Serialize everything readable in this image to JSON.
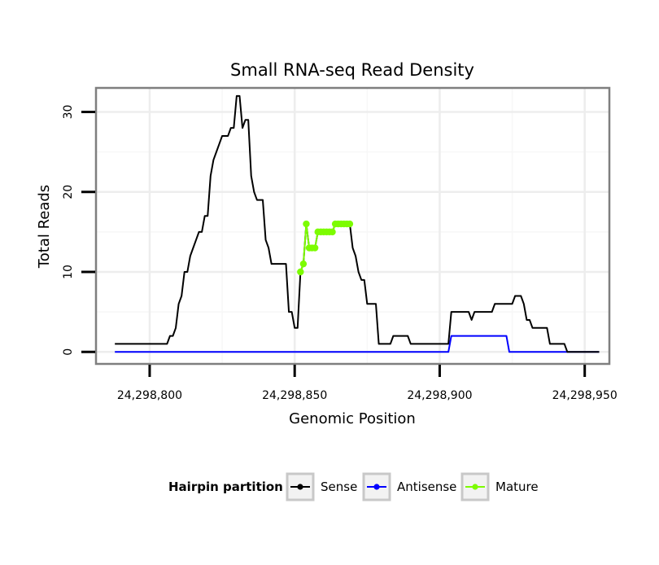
{
  "chart_data": {
    "type": "line",
    "title": "Small RNA-seq Read Density",
    "xlabel": "Genomic Position",
    "ylabel": "Total Reads",
    "xlim": [
      24298781.5,
      24298958.5
    ],
    "ylim": [
      -1.5,
      33
    ],
    "x_ticks": [
      24298800,
      24298850,
      24298900,
      24298950
    ],
    "x_tick_labels": [
      "24,298,800",
      "24,298,850",
      "24,298,900",
      "24,298,950"
    ],
    "y_ticks": [
      0,
      10,
      20,
      30
    ],
    "y_tick_labels": [
      "0",
      "10",
      "20",
      "30"
    ],
    "grid": true,
    "legend": {
      "title": "Hairpin partition",
      "position": "bottom",
      "entries": [
        "Sense",
        "Antisense",
        "Mature"
      ]
    },
    "colors": {
      "Sense": "#000000",
      "Antisense": "#0000ff",
      "Mature": "#7cfc00"
    },
    "series": [
      {
        "name": "Sense",
        "color": "#000000",
        "points": [
          [
            24298788,
            1
          ],
          [
            24298806,
            1
          ],
          [
            24298807,
            2
          ],
          [
            24298808,
            2
          ],
          [
            24298809,
            3
          ],
          [
            24298810,
            6
          ],
          [
            24298811,
            7
          ],
          [
            24298812,
            10
          ],
          [
            24298813,
            10
          ],
          [
            24298814,
            12
          ],
          [
            24298815,
            13
          ],
          [
            24298816,
            14
          ],
          [
            24298817,
            15
          ],
          [
            24298818,
            15
          ],
          [
            24298819,
            17
          ],
          [
            24298820,
            17
          ],
          [
            24298821,
            22
          ],
          [
            24298822,
            24
          ],
          [
            24298823,
            25
          ],
          [
            24298824,
            26
          ],
          [
            24298825,
            27
          ],
          [
            24298827,
            27
          ],
          [
            24298828,
            28
          ],
          [
            24298829,
            28
          ],
          [
            24298830,
            32
          ],
          [
            24298831,
            32
          ],
          [
            24298832,
            28
          ],
          [
            24298833,
            29
          ],
          [
            24298834,
            29
          ],
          [
            24298835,
            22
          ],
          [
            24298836,
            20
          ],
          [
            24298837,
            19
          ],
          [
            24298839,
            19
          ],
          [
            24298840,
            14
          ],
          [
            24298841,
            13
          ],
          [
            24298842,
            11
          ],
          [
            24298847,
            11
          ],
          [
            24298848,
            5
          ],
          [
            24298849,
            5
          ],
          [
            24298850,
            3
          ],
          [
            24298851,
            3
          ],
          [
            24298852,
            10
          ],
          [
            24298853,
            11
          ],
          [
            24298854,
            16
          ],
          [
            24298855,
            13
          ],
          [
            24298856,
            13
          ],
          [
            24298857,
            13
          ],
          [
            24298858,
            15
          ],
          [
            24298859,
            15
          ],
          [
            24298863,
            15
          ],
          [
            24298864,
            16
          ],
          [
            24298869,
            16
          ],
          [
            24298870,
            13
          ],
          [
            24298871,
            12
          ],
          [
            24298872,
            10
          ],
          [
            24298873,
            9
          ],
          [
            24298874,
            9
          ],
          [
            24298875,
            6
          ],
          [
            24298878,
            6
          ],
          [
            24298879,
            1
          ],
          [
            24298883,
            1
          ],
          [
            24298884,
            2
          ],
          [
            24298889,
            2
          ],
          [
            24298890,
            1
          ],
          [
            24298903,
            1
          ],
          [
            24298904,
            5
          ],
          [
            24298910,
            5
          ],
          [
            24298911,
            4
          ],
          [
            24298912,
            5
          ],
          [
            24298918,
            5
          ],
          [
            24298919,
            6
          ],
          [
            24298925,
            6
          ],
          [
            24298926,
            7
          ],
          [
            24298928,
            7
          ],
          [
            24298929,
            6
          ],
          [
            24298930,
            4
          ],
          [
            24298931,
            4
          ],
          [
            24298932,
            3
          ],
          [
            24298937,
            3
          ],
          [
            24298938,
            1
          ],
          [
            24298943,
            1
          ],
          [
            24298944,
            0
          ],
          [
            24298955,
            0
          ]
        ]
      },
      {
        "name": "Antisense",
        "color": "#0000ff",
        "points": [
          [
            24298788,
            0
          ],
          [
            24298903,
            0
          ],
          [
            24298904,
            2
          ],
          [
            24298923,
            2
          ],
          [
            24298924,
            0
          ],
          [
            24298955,
            0
          ]
        ]
      },
      {
        "name": "Mature",
        "color": "#7cfc00",
        "points": [
          [
            24298852,
            10
          ],
          [
            24298853,
            11
          ],
          [
            24298854,
            16
          ],
          [
            24298855,
            13
          ],
          [
            24298856,
            13
          ],
          [
            24298857,
            13
          ],
          [
            24298858,
            15
          ],
          [
            24298859,
            15
          ],
          [
            24298860,
            15
          ],
          [
            24298861,
            15
          ],
          [
            24298862,
            15
          ],
          [
            24298863,
            15
          ],
          [
            24298864,
            16
          ],
          [
            24298865,
            16
          ],
          [
            24298866,
            16
          ],
          [
            24298867,
            16
          ],
          [
            24298868,
            16
          ],
          [
            24298869,
            16
          ]
        ]
      }
    ]
  }
}
